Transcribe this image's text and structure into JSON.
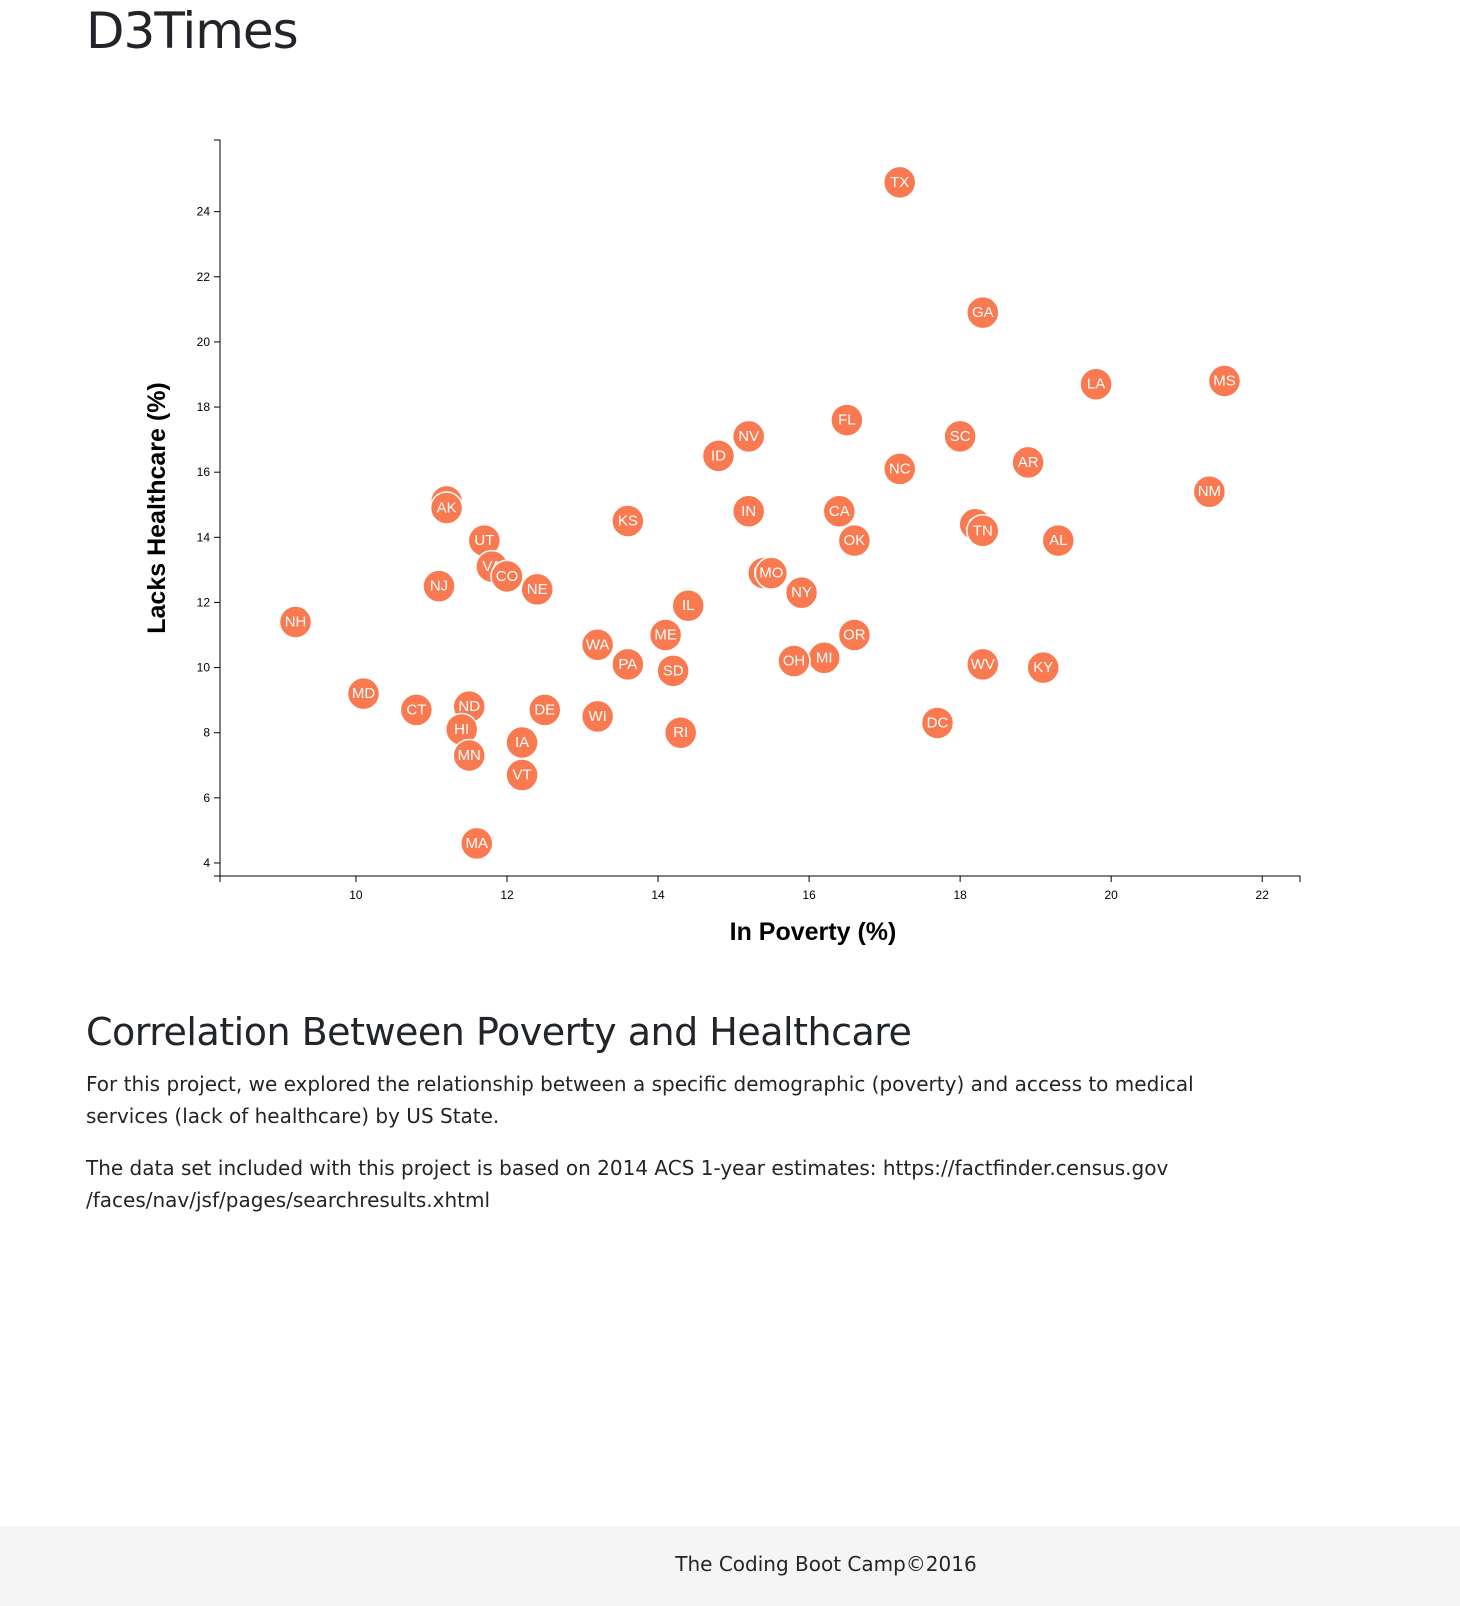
{
  "header": {
    "title": "D3Times"
  },
  "chart_data": {
    "type": "scatter",
    "xlabel": "In Poverty (%)",
    "ylabel": "Lacks Healthcare (%)",
    "xlim": [
      8.2,
      22.5
    ],
    "ylim": [
      3.6,
      26.2
    ],
    "xticks": [
      10,
      12,
      14,
      16,
      18,
      20,
      22
    ],
    "yticks": [
      4,
      6,
      8,
      10,
      12,
      14,
      16,
      18,
      20,
      22,
      24
    ],
    "point_color": "#f97a50",
    "points": [
      {
        "label": "TX",
        "x": 17.2,
        "y": 24.9
      },
      {
        "label": "GA",
        "x": 18.3,
        "y": 20.9
      },
      {
        "label": "MS",
        "x": 21.5,
        "y": 18.8
      },
      {
        "label": "LA",
        "x": 19.8,
        "y": 18.7
      },
      {
        "label": "FL",
        "x": 16.5,
        "y": 17.6
      },
      {
        "label": "NV",
        "x": 15.2,
        "y": 17.1
      },
      {
        "label": "SC",
        "x": 18.0,
        "y": 17.1
      },
      {
        "label": "ID",
        "x": 14.8,
        "y": 16.5
      },
      {
        "label": "AR",
        "x": 18.9,
        "y": 16.3
      },
      {
        "label": "NC",
        "x": 17.2,
        "y": 16.1
      },
      {
        "label": "NM",
        "x": 21.3,
        "y": 15.4
      },
      {
        "label": "WY",
        "x": 11.2,
        "y": 15.1
      },
      {
        "label": "AK",
        "x": 11.2,
        "y": 14.9
      },
      {
        "label": "IN",
        "x": 15.2,
        "y": 14.8
      },
      {
        "label": "CA",
        "x": 16.4,
        "y": 14.8
      },
      {
        "label": "KS",
        "x": 13.6,
        "y": 14.5
      },
      {
        "label": "AZ",
        "x": 18.2,
        "y": 14.4
      },
      {
        "label": "TN",
        "x": 18.3,
        "y": 14.2
      },
      {
        "label": "UT",
        "x": 11.7,
        "y": 13.9
      },
      {
        "label": "OK",
        "x": 16.6,
        "y": 13.9
      },
      {
        "label": "AL",
        "x": 19.3,
        "y": 13.9
      },
      {
        "label": "VA",
        "x": 11.8,
        "y": 13.1
      },
      {
        "label": "CO",
        "x": 12.0,
        "y": 12.8
      },
      {
        "label": "MT",
        "x": 15.4,
        "y": 12.9
      },
      {
        "label": "MO",
        "x": 15.5,
        "y": 12.9
      },
      {
        "label": "NJ",
        "x": 11.1,
        "y": 12.5
      },
      {
        "label": "NE",
        "x": 12.4,
        "y": 12.4
      },
      {
        "label": "NY",
        "x": 15.9,
        "y": 12.3
      },
      {
        "label": "IL",
        "x": 14.4,
        "y": 11.9
      },
      {
        "label": "NH",
        "x": 9.2,
        "y": 11.4
      },
      {
        "label": "ME",
        "x": 14.1,
        "y": 11.0
      },
      {
        "label": "OR",
        "x": 16.6,
        "y": 11.0
      },
      {
        "label": "WA",
        "x": 13.2,
        "y": 10.7
      },
      {
        "label": "MI",
        "x": 16.2,
        "y": 10.3
      },
      {
        "label": "OH",
        "x": 15.8,
        "y": 10.2
      },
      {
        "label": "PA",
        "x": 13.6,
        "y": 10.1
      },
      {
        "label": "WV",
        "x": 18.3,
        "y": 10.1
      },
      {
        "label": "KY",
        "x": 19.1,
        "y": 10.0
      },
      {
        "label": "SD",
        "x": 14.2,
        "y": 9.9
      },
      {
        "label": "MD",
        "x": 10.1,
        "y": 9.2
      },
      {
        "label": "ND",
        "x": 11.5,
        "y": 8.8
      },
      {
        "label": "CT",
        "x": 10.8,
        "y": 8.7
      },
      {
        "label": "DE",
        "x": 12.5,
        "y": 8.7
      },
      {
        "label": "WI",
        "x": 13.2,
        "y": 8.5
      },
      {
        "label": "DC",
        "x": 17.7,
        "y": 8.3
      },
      {
        "label": "HI",
        "x": 11.4,
        "y": 8.1
      },
      {
        "label": "RI",
        "x": 14.3,
        "y": 8.0
      },
      {
        "label": "IA",
        "x": 12.2,
        "y": 7.7
      },
      {
        "label": "MN",
        "x": 11.5,
        "y": 7.3
      },
      {
        "label": "VT",
        "x": 12.2,
        "y": 6.7
      },
      {
        "label": "MA",
        "x": 11.6,
        "y": 4.6
      }
    ]
  },
  "article": {
    "heading": "Correlation Between Poverty and Healthcare",
    "paragraph1": "For this project, we explored the relationship between a specific demographic (poverty) and access to medical services (lack of healthcare) by US State.",
    "paragraph2_line1": "The data set included with this project is based on 2014 ACS 1-year estimates: https://factfinder.census.gov",
    "paragraph2_line2": "/faces/nav/jsf/pages/searchresults.xhtml"
  },
  "footer": {
    "text": "The Coding Boot Camp©2016"
  }
}
